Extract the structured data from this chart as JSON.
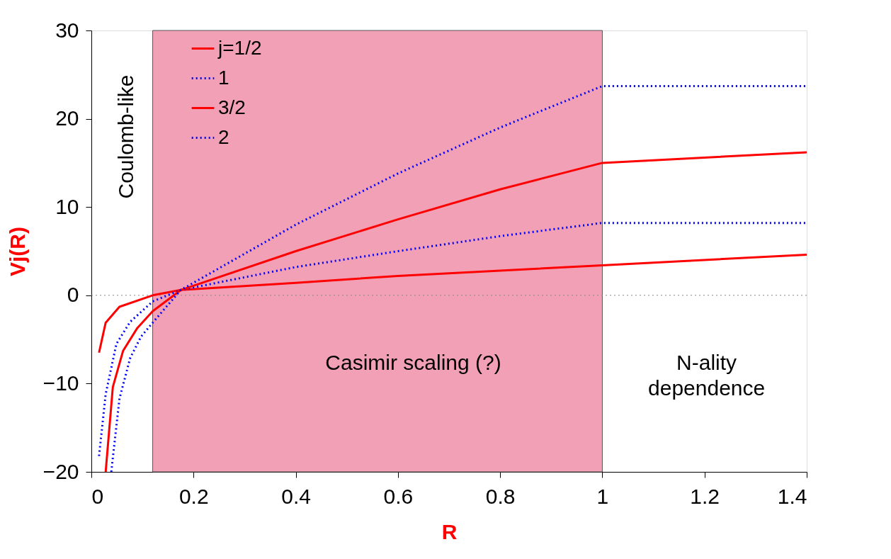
{
  "chart_data": {
    "type": "line",
    "xlabel": "R",
    "ylabel": "Vj(R)",
    "xlim": [
      0,
      1.4
    ],
    "xticks": [
      0,
      0.2,
      0.4,
      0.6,
      0.8,
      1,
      1.2,
      1.4
    ],
    "ylim": [
      -20,
      30
    ],
    "yticks": [
      -20,
      -10,
      0,
      10,
      20,
      30
    ],
    "grid": false,
    "legend": "top left",
    "series": [
      {
        "name": "j=1/2",
        "color": "#ff0000",
        "line_style": "solid",
        "x": [
          0.015,
          0.028,
          0.055,
          0.12,
          0.175,
          0.4,
          0.6,
          0.8,
          1,
          1.4
        ],
        "values": [
          -6.5,
          -3.1,
          -1.3,
          0,
          0.6,
          1.4,
          2.2,
          2.8,
          3.4,
          4.6
        ]
      },
      {
        "name": "1",
        "color": "#0000ff",
        "line_style": "dotted",
        "x": [
          0.015,
          0.028,
          0.049,
          0.076,
          0.12,
          0.175,
          0.4,
          0.6,
          0.8,
          1,
          1.4
        ],
        "values": [
          -18.2,
          -11.2,
          -5.5,
          -3.0,
          -0.7,
          0.6,
          3.2,
          5.0,
          6.7,
          8.2,
          8.2
        ]
      },
      {
        "name": "3/2",
        "color": "#ff0000",
        "line_style": "solid",
        "x": [
          0.028,
          0.042,
          0.062,
          0.09,
          0.12,
          0.175,
          0.4,
          0.6,
          0.8,
          1,
          1.4
        ],
        "values": [
          -20,
          -10.4,
          -6.3,
          -3.7,
          -1.8,
          0.6,
          5.0,
          8.6,
          12.0,
          15.0,
          16.2
        ]
      },
      {
        "name": "2",
        "color": "#0000ff",
        "line_style": "dotted",
        "x": [
          0.039,
          0.055,
          0.076,
          0.097,
          0.12,
          0.175,
          0.4,
          0.6,
          0.8,
          1,
          1.4
        ],
        "values": [
          -20,
          -11.7,
          -7.1,
          -4.7,
          -3.1,
          0.6,
          8.0,
          13.8,
          19.0,
          23.7,
          23.7
        ]
      }
    ],
    "ref_lines": [
      {
        "axis": "y",
        "value": 0,
        "color": "#888888",
        "line_style": "dotted"
      }
    ],
    "bands": [
      {
        "axis": "x",
        "from": 0.12,
        "to": 1.0,
        "color": "#f2a0b6"
      }
    ],
    "annotations": [
      "Coulomb-like",
      "Casimir scaling (?)",
      "N-ality dependence"
    ]
  }
}
